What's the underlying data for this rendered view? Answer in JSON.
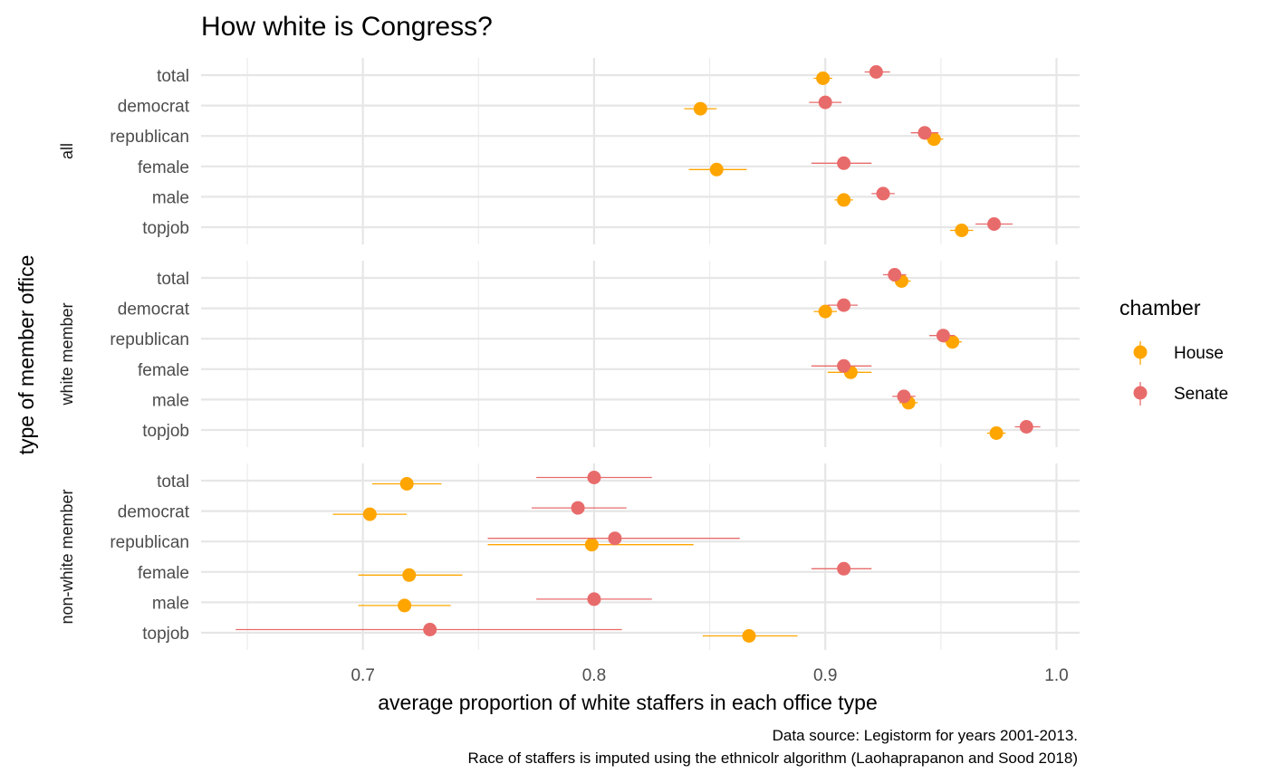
{
  "chart_data": {
    "type": "scatter",
    "title": "How white is Congress?",
    "xlabel": "average proportion of white staffers in each office type",
    "ylabel": "type of member office",
    "xlim": [
      0.63,
      1.01
    ],
    "x_ticks": [
      0.7,
      0.8,
      0.9,
      1.0
    ],
    "x_tick_labels": [
      "0.7",
      "0.8",
      "0.9",
      "1.0"
    ],
    "categories": [
      "total",
      "democrat",
      "republican",
      "female",
      "male",
      "topjob"
    ],
    "legend": {
      "title": "chamber",
      "position": "right",
      "items": [
        {
          "name": "House",
          "color": "#FFA500"
        },
        {
          "name": "Senate",
          "color": "#E86B6B"
        }
      ]
    },
    "grid": true,
    "caption": [
      "Data source: Legistorm for years 2001-2013.",
      "Race of staffers is imputed using the ethnicolr algorithm (Laohaprapanon and Sood 2018)"
    ],
    "panels": [
      {
        "label": "all",
        "series": [
          {
            "name": "House",
            "points": [
              {
                "category": "total",
                "value": 0.899,
                "low": 0.895,
                "high": 0.903
              },
              {
                "category": "democrat",
                "value": 0.846,
                "low": 0.839,
                "high": 0.853
              },
              {
                "category": "republican",
                "value": 0.947,
                "low": 0.943,
                "high": 0.951
              },
              {
                "category": "female",
                "value": 0.853,
                "low": 0.841,
                "high": 0.866
              },
              {
                "category": "male",
                "value": 0.908,
                "low": 0.904,
                "high": 0.912
              },
              {
                "category": "topjob",
                "value": 0.959,
                "low": 0.954,
                "high": 0.964
              }
            ]
          },
          {
            "name": "Senate",
            "points": [
              {
                "category": "total",
                "value": 0.922,
                "low": 0.917,
                "high": 0.928
              },
              {
                "category": "democrat",
                "value": 0.9,
                "low": 0.893,
                "high": 0.907
              },
              {
                "category": "republican",
                "value": 0.943,
                "low": 0.937,
                "high": 0.949
              },
              {
                "category": "female",
                "value": 0.908,
                "low": 0.894,
                "high": 0.92
              },
              {
                "category": "male",
                "value": 0.925,
                "low": 0.92,
                "high": 0.93
              },
              {
                "category": "topjob",
                "value": 0.973,
                "low": 0.965,
                "high": 0.981
              }
            ]
          }
        ]
      },
      {
        "label": "white member",
        "series": [
          {
            "name": "House",
            "points": [
              {
                "category": "total",
                "value": 0.933,
                "low": 0.929,
                "high": 0.937
              },
              {
                "category": "democrat",
                "value": 0.9,
                "low": 0.895,
                "high": 0.905
              },
              {
                "category": "republican",
                "value": 0.955,
                "low": 0.951,
                "high": 0.959
              },
              {
                "category": "female",
                "value": 0.911,
                "low": 0.901,
                "high": 0.92
              },
              {
                "category": "male",
                "value": 0.936,
                "low": 0.932,
                "high": 0.94
              },
              {
                "category": "topjob",
                "value": 0.974,
                "low": 0.97,
                "high": 0.978
              }
            ]
          },
          {
            "name": "Senate",
            "points": [
              {
                "category": "total",
                "value": 0.93,
                "low": 0.925,
                "high": 0.935
              },
              {
                "category": "democrat",
                "value": 0.908,
                "low": 0.901,
                "high": 0.914
              },
              {
                "category": "republican",
                "value": 0.951,
                "low": 0.945,
                "high": 0.956
              },
              {
                "category": "female",
                "value": 0.908,
                "low": 0.894,
                "high": 0.92
              },
              {
                "category": "male",
                "value": 0.934,
                "low": 0.929,
                "high": 0.939
              },
              {
                "category": "topjob",
                "value": 0.987,
                "low": 0.982,
                "high": 0.993
              }
            ]
          }
        ]
      },
      {
        "label": "non-white member",
        "series": [
          {
            "name": "House",
            "points": [
              {
                "category": "total",
                "value": 0.719,
                "low": 0.704,
                "high": 0.734
              },
              {
                "category": "democrat",
                "value": 0.703,
                "low": 0.687,
                "high": 0.719
              },
              {
                "category": "republican",
                "value": 0.799,
                "low": 0.754,
                "high": 0.843
              },
              {
                "category": "female",
                "value": 0.72,
                "low": 0.698,
                "high": 0.743
              },
              {
                "category": "male",
                "value": 0.718,
                "low": 0.698,
                "high": 0.738
              },
              {
                "category": "topjob",
                "value": 0.867,
                "low": 0.847,
                "high": 0.888
              }
            ]
          },
          {
            "name": "Senate",
            "points": [
              {
                "category": "total",
                "value": 0.8,
                "low": 0.775,
                "high": 0.825
              },
              {
                "category": "democrat",
                "value": 0.793,
                "low": 0.773,
                "high": 0.814
              },
              {
                "category": "republican",
                "value": 0.809,
                "low": 0.754,
                "high": 0.863
              },
              {
                "category": "female",
                "value": 0.908,
                "low": 0.894,
                "high": 0.92
              },
              {
                "category": "male",
                "value": 0.8,
                "low": 0.775,
                "high": 0.825
              },
              {
                "category": "topjob",
                "value": 0.729,
                "low": 0.645,
                "high": 0.812
              }
            ]
          }
        ]
      }
    ]
  }
}
